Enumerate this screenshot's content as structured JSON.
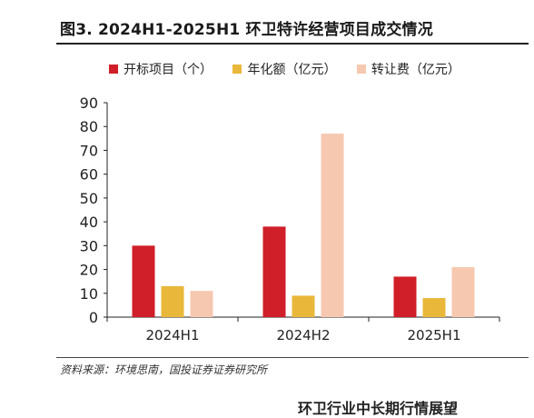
{
  "figure": {
    "title": "图3. 2024H1-2025H1 环卫特许经营项目成交情况",
    "source": "资料来源：环境思南，国投证券证券研究所",
    "footer_text": "环卫行业中长期行情展望"
  },
  "legend": {
    "items": [
      {
        "label": "开标项目（个）",
        "color": "#d01f28"
      },
      {
        "label": "年化额（亿元）",
        "color": "#e9b83a"
      },
      {
        "label": "转让费（亿元）",
        "color": "#f6c8b0"
      }
    ]
  },
  "chart_data": {
    "type": "bar",
    "categories": [
      "2024H1",
      "2024H2",
      "2025H1"
    ],
    "series": [
      {
        "name": "开标项目（个）",
        "color": "#d01f28",
        "values": [
          30,
          38,
          17
        ]
      },
      {
        "name": "年化额（亿元）",
        "color": "#e9b83a",
        "values": [
          13,
          9,
          8
        ]
      },
      {
        "name": "转让费（亿元）",
        "color": "#f6c8b0",
        "values": [
          11,
          77,
          21
        ]
      }
    ],
    "ylim": [
      0,
      90
    ],
    "yticks": [
      0,
      10,
      20,
      30,
      40,
      50,
      60,
      70,
      80,
      90
    ],
    "grid": false,
    "legend_position": "top"
  }
}
